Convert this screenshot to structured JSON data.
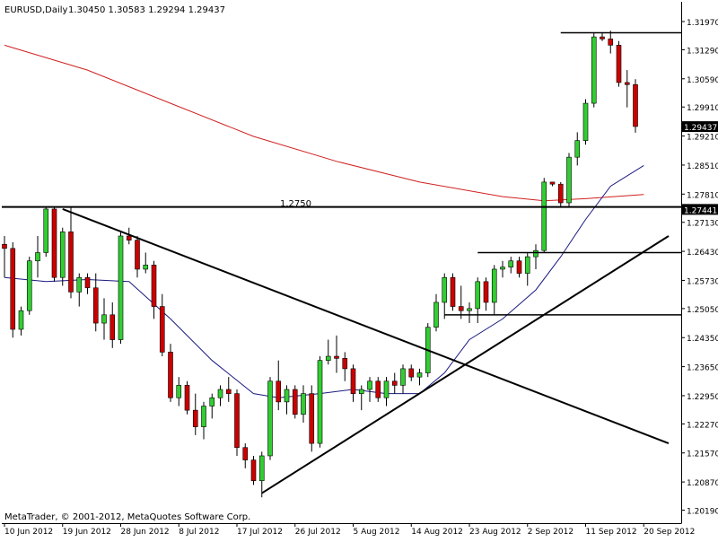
{
  "header": {
    "symbol_label": "EURUSD,Daily",
    "ohlc_text": "1.30450 1.30583 1.29294 1.29437"
  },
  "watermark": "MetaTrader, © 2001-2012, MetaQuotes Software Corp.",
  "level_label": "1.2750",
  "chart_data": {
    "type": "candlestick",
    "title": "",
    "ylim": [
      1.2005,
      1.321
    ],
    "price_ticks": [
      "1.31970",
      "1.31290",
      "1.30590",
      "1.29910",
      "1.29210",
      "1.28510",
      "1.27810",
      "1.27130",
      "1.26430",
      "1.25730",
      "1.25050",
      "1.24350",
      "1.23650",
      "1.22950",
      "1.22270",
      "1.21570",
      "1.20870",
      "1.20190"
    ],
    "date_ticks": [
      {
        "label": "10 Jun 2012",
        "bar": 0
      },
      {
        "label": "19 Jun 2012",
        "bar": 7
      },
      {
        "label": "28 Jun 2012",
        "bar": 14
      },
      {
        "label": "8 Jul 2012",
        "bar": 21
      },
      {
        "label": "17 Jul 2012",
        "bar": 28
      },
      {
        "label": "26 Jul 2012",
        "bar": 35
      },
      {
        "label": "5 Aug 2012",
        "bar": 42
      },
      {
        "label": "14 Aug 2012",
        "bar": 49
      },
      {
        "label": "23 Aug 2012",
        "bar": 56
      },
      {
        "label": "2 Sep 2012",
        "bar": 63
      },
      {
        "label": "11 Sep 2012",
        "bar": 70
      },
      {
        "label": "20 Sep 2012",
        "bar": 77
      }
    ],
    "price_markers": [
      {
        "value": 1.29437,
        "text": "1.29437"
      },
      {
        "value": 1.27441,
        "text": "1.27441"
      }
    ],
    "candles": [
      {
        "o": 1.266,
        "h": 1.268,
        "l": 1.258,
        "c": 1.265
      },
      {
        "o": 1.265,
        "h": 1.2665,
        "l": 1.2435,
        "c": 1.2455
      },
      {
        "o": 1.2455,
        "h": 1.251,
        "l": 1.244,
        "c": 1.25
      },
      {
        "o": 1.25,
        "h": 1.263,
        "l": 1.249,
        "c": 1.262
      },
      {
        "o": 1.262,
        "h": 1.268,
        "l": 1.258,
        "c": 1.264
      },
      {
        "o": 1.264,
        "h": 1.275,
        "l": 1.263,
        "c": 1.2745
      },
      {
        "o": 1.2745,
        "h": 1.2748,
        "l": 1.257,
        "c": 1.258
      },
      {
        "o": 1.258,
        "h": 1.27,
        "l": 1.256,
        "c": 1.269
      },
      {
        "o": 1.269,
        "h": 1.2748,
        "l": 1.253,
        "c": 1.2545
      },
      {
        "o": 1.2545,
        "h": 1.259,
        "l": 1.251,
        "c": 1.258
      },
      {
        "o": 1.258,
        "h": 1.259,
        "l": 1.254,
        "c": 1.2555
      },
      {
        "o": 1.2555,
        "h": 1.259,
        "l": 1.245,
        "c": 1.247
      },
      {
        "o": 1.247,
        "h": 1.253,
        "l": 1.243,
        "c": 1.249
      },
      {
        "o": 1.249,
        "h": 1.252,
        "l": 1.241,
        "c": 1.243
      },
      {
        "o": 1.243,
        "h": 1.269,
        "l": 1.242,
        "c": 1.268
      },
      {
        "o": 1.268,
        "h": 1.27,
        "l": 1.266,
        "c": 1.267
      },
      {
        "o": 1.267,
        "h": 1.268,
        "l": 1.258,
        "c": 1.26
      },
      {
        "o": 1.26,
        "h": 1.264,
        "l": 1.259,
        "c": 1.261
      },
      {
        "o": 1.261,
        "h": 1.262,
        "l": 1.248,
        "c": 1.251
      },
      {
        "o": 1.251,
        "h": 1.254,
        "l": 1.239,
        "c": 1.24
      },
      {
        "o": 1.24,
        "h": 1.242,
        "l": 1.228,
        "c": 1.229
      },
      {
        "o": 1.229,
        "h": 1.234,
        "l": 1.227,
        "c": 1.232
      },
      {
        "o": 1.232,
        "h": 1.233,
        "l": 1.225,
        "c": 1.226
      },
      {
        "o": 1.226,
        "h": 1.23,
        "l": 1.22,
        "c": 1.222
      },
      {
        "o": 1.222,
        "h": 1.228,
        "l": 1.219,
        "c": 1.227
      },
      {
        "o": 1.227,
        "h": 1.23,
        "l": 1.224,
        "c": 1.229
      },
      {
        "o": 1.229,
        "h": 1.232,
        "l": 1.227,
        "c": 1.231
      },
      {
        "o": 1.231,
        "h": 1.234,
        "l": 1.228,
        "c": 1.23
      },
      {
        "o": 1.23,
        "h": 1.231,
        "l": 1.215,
        "c": 1.217
      },
      {
        "o": 1.217,
        "h": 1.218,
        "l": 1.212,
        "c": 1.214
      },
      {
        "o": 1.214,
        "h": 1.215,
        "l": 1.208,
        "c": 1.209
      },
      {
        "o": 1.209,
        "h": 1.216,
        "l": 1.205,
        "c": 1.215
      },
      {
        "o": 1.215,
        "h": 1.234,
        "l": 1.214,
        "c": 1.233
      },
      {
        "o": 1.233,
        "h": 1.238,
        "l": 1.226,
        "c": 1.228
      },
      {
        "o": 1.228,
        "h": 1.232,
        "l": 1.225,
        "c": 1.231
      },
      {
        "o": 1.231,
        "h": 1.232,
        "l": 1.224,
        "c": 1.225
      },
      {
        "o": 1.225,
        "h": 1.232,
        "l": 1.223,
        "c": 1.23
      },
      {
        "o": 1.23,
        "h": 1.232,
        "l": 1.216,
        "c": 1.218
      },
      {
        "o": 1.218,
        "h": 1.239,
        "l": 1.217,
        "c": 1.238
      },
      {
        "o": 1.238,
        "h": 1.243,
        "l": 1.237,
        "c": 1.239
      },
      {
        "o": 1.239,
        "h": 1.244,
        "l": 1.235,
        "c": 1.2385
      },
      {
        "o": 1.2385,
        "h": 1.24,
        "l": 1.233,
        "c": 1.236
      },
      {
        "o": 1.236,
        "h": 1.237,
        "l": 1.228,
        "c": 1.23
      },
      {
        "o": 1.23,
        "h": 1.232,
        "l": 1.226,
        "c": 1.231
      },
      {
        "o": 1.231,
        "h": 1.234,
        "l": 1.228,
        "c": 1.233
      },
      {
        "o": 1.233,
        "h": 1.234,
        "l": 1.228,
        "c": 1.229
      },
      {
        "o": 1.229,
        "h": 1.234,
        "l": 1.227,
        "c": 1.233
      },
      {
        "o": 1.233,
        "h": 1.235,
        "l": 1.23,
        "c": 1.232
      },
      {
        "o": 1.232,
        "h": 1.237,
        "l": 1.23,
        "c": 1.236
      },
      {
        "o": 1.236,
        "h": 1.237,
        "l": 1.233,
        "c": 1.234
      },
      {
        "o": 1.234,
        "h": 1.236,
        "l": 1.232,
        "c": 1.235
      },
      {
        "o": 1.235,
        "h": 1.247,
        "l": 1.234,
        "c": 1.246
      },
      {
        "o": 1.246,
        "h": 1.254,
        "l": 1.245,
        "c": 1.252
      },
      {
        "o": 1.252,
        "h": 1.259,
        "l": 1.248,
        "c": 1.258
      },
      {
        "o": 1.258,
        "h": 1.259,
        "l": 1.25,
        "c": 1.251
      },
      {
        "o": 1.251,
        "h": 1.256,
        "l": 1.248,
        "c": 1.25
      },
      {
        "o": 1.25,
        "h": 1.252,
        "l": 1.247,
        "c": 1.2505
      },
      {
        "o": 1.2505,
        "h": 1.258,
        "l": 1.247,
        "c": 1.257
      },
      {
        "o": 1.257,
        "h": 1.258,
        "l": 1.25,
        "c": 1.252
      },
      {
        "o": 1.252,
        "h": 1.261,
        "l": 1.249,
        "c": 1.26
      },
      {
        "o": 1.26,
        "h": 1.262,
        "l": 1.258,
        "c": 1.2605
      },
      {
        "o": 1.2605,
        "h": 1.263,
        "l": 1.259,
        "c": 1.262
      },
      {
        "o": 1.262,
        "h": 1.263,
        "l": 1.258,
        "c": 1.259
      },
      {
        "o": 1.259,
        "h": 1.264,
        "l": 1.256,
        "c": 1.263
      },
      {
        "o": 1.263,
        "h": 1.266,
        "l": 1.26,
        "c": 1.2645
      },
      {
        "o": 1.2645,
        "h": 1.282,
        "l": 1.264,
        "c": 1.281
      },
      {
        "o": 1.281,
        "h": 1.281,
        "l": 1.28,
        "c": 1.2805
      },
      {
        "o": 1.2805,
        "h": 1.281,
        "l": 1.275,
        "c": 1.276
      },
      {
        "o": 1.276,
        "h": 1.288,
        "l": 1.275,
        "c": 1.287
      },
      {
        "o": 1.287,
        "h": 1.293,
        "l": 1.285,
        "c": 1.291
      },
      {
        "o": 1.291,
        "h": 1.301,
        "l": 1.29,
        "c": 1.3
      },
      {
        "o": 1.3,
        "h": 1.317,
        "l": 1.299,
        "c": 1.316
      },
      {
        "o": 1.316,
        "h": 1.317,
        "l": 1.315,
        "c": 1.3155
      },
      {
        "o": 1.3155,
        "h": 1.3175,
        "l": 1.312,
        "c": 1.314
      },
      {
        "o": 1.314,
        "h": 1.315,
        "l": 1.304,
        "c": 1.305
      },
      {
        "o": 1.305,
        "h": 1.308,
        "l": 1.299,
        "c": 1.3045
      },
      {
        "o": 1.3045,
        "h": 1.3058,
        "l": 1.2929,
        "c": 1.2944
      }
    ],
    "sma200": [
      [
        0,
        1.314
      ],
      [
        10,
        1.308
      ],
      [
        20,
        1.3
      ],
      [
        30,
        1.292
      ],
      [
        40,
        1.286
      ],
      [
        50,
        1.281
      ],
      [
        60,
        1.2775
      ],
      [
        65,
        1.2765
      ],
      [
        70,
        1.277
      ],
      [
        77,
        1.278
      ]
    ],
    "sma20": [
      [
        0,
        1.258
      ],
      [
        5,
        1.257
      ],
      [
        10,
        1.2575
      ],
      [
        15,
        1.257
      ],
      [
        20,
        1.248
      ],
      [
        25,
        1.238
      ],
      [
        30,
        1.23
      ],
      [
        33,
        1.229
      ],
      [
        38,
        1.23
      ],
      [
        42,
        1.231
      ],
      [
        46,
        1.23
      ],
      [
        50,
        1.23
      ],
      [
        53,
        1.235
      ],
      [
        56,
        1.243
      ],
      [
        60,
        1.248
      ],
      [
        64,
        1.255
      ],
      [
        67,
        1.263
      ],
      [
        70,
        1.272
      ],
      [
        73,
        1.28
      ],
      [
        77,
        1.285
      ]
    ],
    "lines": [
      {
        "name": "resistance-1-2750",
        "from": [
          -2,
          1.275
        ],
        "to": [
          82,
          1.275
        ],
        "width": 2
      },
      {
        "name": "upper-resistance",
        "from": [
          67,
          1.317
        ],
        "to": [
          82,
          1.317
        ],
        "width": 1.5
      },
      {
        "name": "range-top",
        "from": [
          57,
          1.264
        ],
        "to": [
          82,
          1.264
        ],
        "width": 1.5
      },
      {
        "name": "range-bottom",
        "from": [
          53,
          1.249
        ],
        "to": [
          82,
          1.249
        ],
        "width": 1.5
      },
      {
        "name": "down-trendline",
        "from": [
          7,
          1.2745
        ],
        "to": [
          80,
          1.218
        ],
        "width": 2
      },
      {
        "name": "up-trendline",
        "from": [
          31,
          1.206
        ],
        "to": [
          80,
          1.268
        ],
        "width": 2
      }
    ],
    "colors": {
      "bull": "#32CD32",
      "bear": "#CC0000",
      "wick": "#000000",
      "sma200": "#D02020",
      "sma20": "#1A1A80",
      "line": "#000000"
    }
  }
}
